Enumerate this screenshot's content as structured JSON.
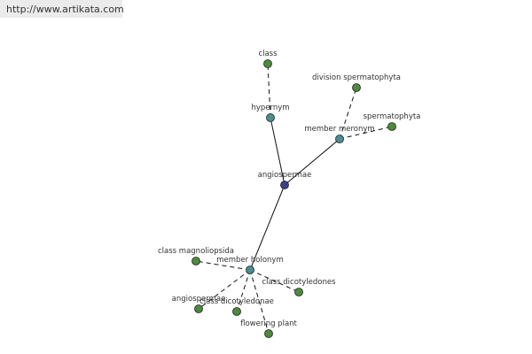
{
  "header": {
    "url": "http://www.artikata.com"
  },
  "nodes": [
    {
      "label": "angiospermae"
    },
    {
      "label": "hypernym"
    },
    {
      "label": "class"
    },
    {
      "label": "member meronym"
    },
    {
      "label": "division spermatophyta"
    },
    {
      "label": "spermatophyta"
    },
    {
      "label": "member holonym"
    },
    {
      "label": "class magnoliopsida"
    },
    {
      "label": "class dicotyledones"
    },
    {
      "label": "angiospermae"
    },
    {
      "label": "class dicotyledonae"
    },
    {
      "label": "flowering plant"
    }
  ]
}
